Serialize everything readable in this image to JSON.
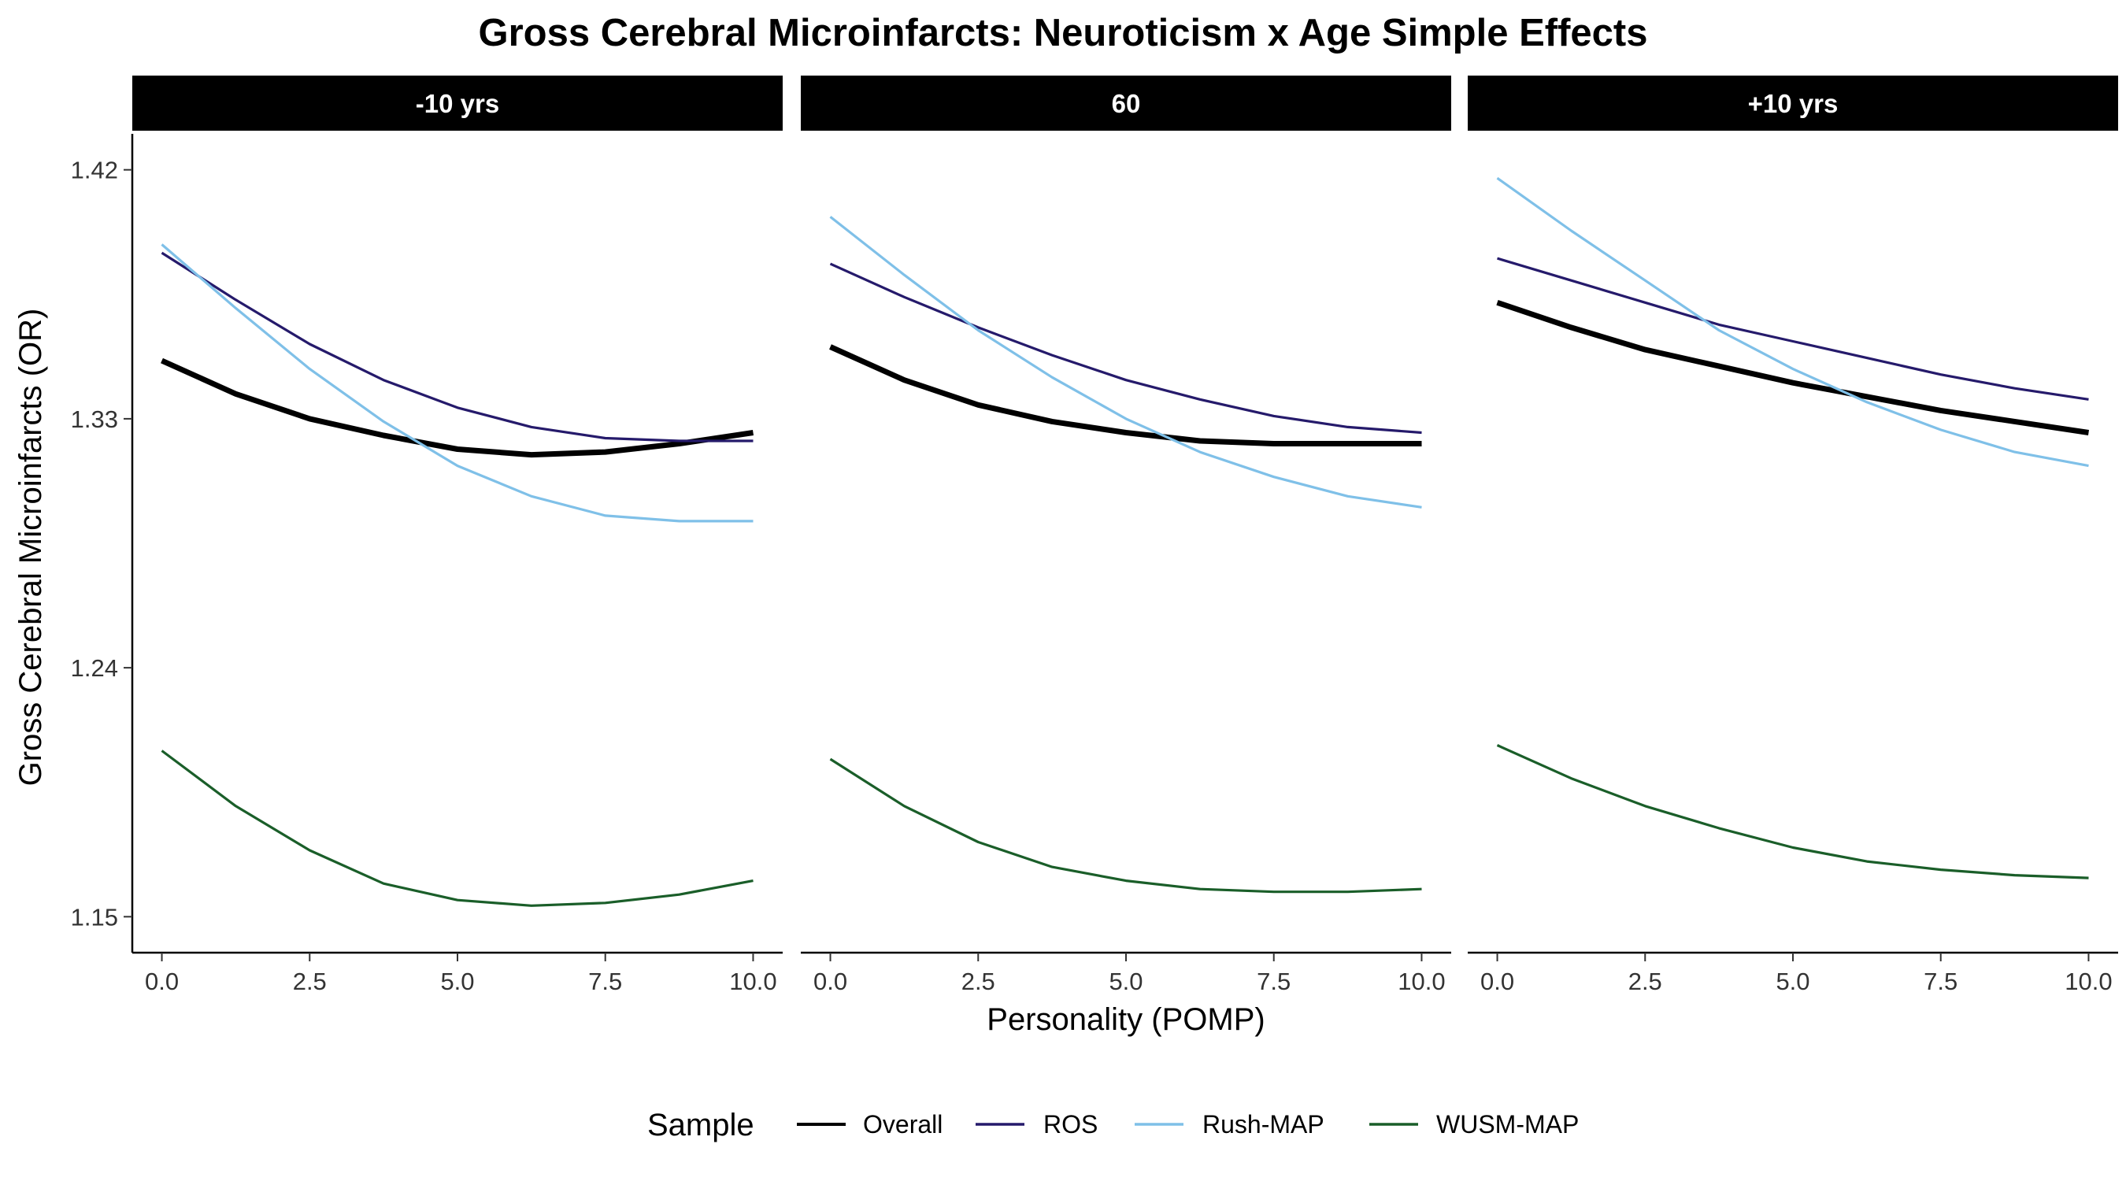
{
  "chart_data": {
    "type": "line",
    "title": "Gross Cerebral Microinfarcts: Neuroticism x Age Simple Effects",
    "xlabel": "Personality (POMP)",
    "ylabel": "Gross Cerebral Microinfarcts (OR)",
    "xlim": [
      -0.5,
      10.5
    ],
    "ylim": [
      1.137,
      1.433
    ],
    "x_ticks": [
      {
        "value": 0,
        "label": "0.0"
      },
      {
        "value": 2.5,
        "label": "2.5"
      },
      {
        "value": 5,
        "label": "5.0"
      },
      {
        "value": 7.5,
        "label": "7.5"
      },
      {
        "value": 10,
        "label": "10.0"
      }
    ],
    "y_ticks": [
      {
        "value": 1.15,
        "label": "1.15"
      },
      {
        "value": 1.24,
        "label": "1.24"
      },
      {
        "value": 1.33,
        "label": "1.33"
      },
      {
        "value": 1.42,
        "label": "1.42"
      }
    ],
    "grid": false,
    "legend": {
      "title": "Sample",
      "position": "bottom",
      "entries": [
        {
          "name": "Overall",
          "color": "#000000",
          "width": 7
        },
        {
          "name": "ROS",
          "color": "#251a6b",
          "width": 3.2
        },
        {
          "name": "Rush-MAP",
          "color": "#7fc0e8",
          "width": 3.2
        },
        {
          "name": "WUSM-MAP",
          "color": "#1a5e29",
          "width": 3.2
        }
      ]
    },
    "x": [
      0,
      1.25,
      2.5,
      3.75,
      5,
      6.25,
      7.5,
      8.75,
      10
    ],
    "panels": [
      {
        "label": "-10 yrs",
        "series": [
          {
            "name": "Overall",
            "values": [
              1.351,
              1.339,
              1.33,
              1.324,
              1.319,
              1.317,
              1.318,
              1.321,
              1.325
            ]
          },
          {
            "name": "ROS",
            "values": [
              1.39,
              1.373,
              1.357,
              1.344,
              1.334,
              1.327,
              1.323,
              1.322,
              1.322
            ]
          },
          {
            "name": "Rush-MAP",
            "values": [
              1.393,
              1.37,
              1.348,
              1.329,
              1.313,
              1.302,
              1.295,
              1.293,
              1.293
            ]
          },
          {
            "name": "WUSM-MAP",
            "values": [
              1.21,
              1.19,
              1.174,
              1.162,
              1.156,
              1.154,
              1.155,
              1.158,
              1.163
            ]
          }
        ]
      },
      {
        "label": "60",
        "series": [
          {
            "name": "Overall",
            "values": [
              1.356,
              1.344,
              1.335,
              1.329,
              1.325,
              1.322,
              1.321,
              1.321,
              1.321
            ]
          },
          {
            "name": "ROS",
            "values": [
              1.386,
              1.374,
              1.363,
              1.353,
              1.344,
              1.337,
              1.331,
              1.327,
              1.325
            ]
          },
          {
            "name": "Rush-MAP",
            "values": [
              1.403,
              1.382,
              1.362,
              1.345,
              1.33,
              1.318,
              1.309,
              1.302,
              1.298
            ]
          },
          {
            "name": "WUSM-MAP",
            "values": [
              1.207,
              1.19,
              1.177,
              1.168,
              1.163,
              1.16,
              1.159,
              1.159,
              1.16
            ]
          }
        ]
      },
      {
        "label": "+10 yrs",
        "series": [
          {
            "name": "Overall",
            "values": [
              1.372,
              1.363,
              1.355,
              1.349,
              1.343,
              1.338,
              1.333,
              1.329,
              1.325
            ]
          },
          {
            "name": "ROS",
            "values": [
              1.388,
              1.38,
              1.372,
              1.364,
              1.358,
              1.352,
              1.346,
              1.341,
              1.337
            ]
          },
          {
            "name": "Rush-MAP",
            "values": [
              1.417,
              1.398,
              1.38,
              1.362,
              1.348,
              1.336,
              1.326,
              1.318,
              1.313
            ]
          },
          {
            "name": "WUSM-MAP",
            "values": [
              1.212,
              1.2,
              1.19,
              1.182,
              1.175,
              1.17,
              1.167,
              1.165,
              1.164
            ]
          }
        ]
      }
    ]
  }
}
